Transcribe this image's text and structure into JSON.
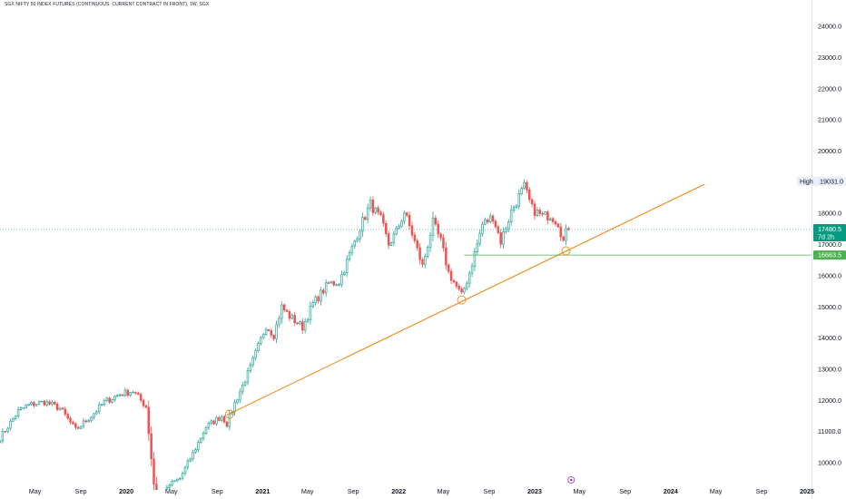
{
  "title": "SGX NIFTY 50 INDEX FUTURES (CONTINUOUS: CURRENT CONTRACT IN FRONT), 1W, SGX",
  "colors": {
    "up": "#26a69a",
    "down": "#ef5350",
    "trendline": "#f57c00",
    "support": "#4caf50",
    "current_price_bg": "#089981",
    "support_label_bg": "#4caf50",
    "high_label_bg": "#e9eefc",
    "dotted_price_line": "#26a69a",
    "event_marker": "#9c27b0"
  },
  "chart_data": {
    "type": "candlestick",
    "title": "SGX NIFTY 50 INDEX FUTURES (CONTINUOUS: CURRENT CONTRACT IN FRONT), 1W, SGX",
    "ylim": [
      9600,
      24700
    ],
    "xlim": [
      "2019-01-27",
      "2025-01-13"
    ],
    "y_ticks": [
      10000,
      11000,
      12000,
      13000,
      14000,
      15000,
      16000,
      17000,
      18000,
      19000,
      20000,
      21000,
      22000,
      23000,
      24000
    ],
    "y_tick_labels": [
      "10000.0",
      "11000.0",
      "12000.0",
      "13000.0",
      "14000.0",
      "15000.0",
      "16000.0",
      "17000.0",
      "18000.0",
      "19000.0",
      "20000.0",
      "21000.0",
      "22000.0",
      "23000.0",
      "24000.0"
    ],
    "x_ticks": [
      {
        "label": "May",
        "date": "2019-05-01",
        "bold": false
      },
      {
        "label": "Sep",
        "date": "2019-09-01",
        "bold": false
      },
      {
        "label": "2020",
        "date": "2020-01-01",
        "bold": true
      },
      {
        "label": "May",
        "date": "2020-05-01",
        "bold": false
      },
      {
        "label": "Sep",
        "date": "2020-09-01",
        "bold": false
      },
      {
        "label": "2021",
        "date": "2021-01-01",
        "bold": true
      },
      {
        "label": "May",
        "date": "2021-05-01",
        "bold": false
      },
      {
        "label": "Sep",
        "date": "2021-09-01",
        "bold": false
      },
      {
        "label": "2022",
        "date": "2022-01-01",
        "bold": true
      },
      {
        "label": "May",
        "date": "2022-05-01",
        "bold": false
      },
      {
        "label": "Sep",
        "date": "2022-09-01",
        "bold": false
      },
      {
        "label": "2023",
        "date": "2023-01-01",
        "bold": true
      },
      {
        "label": "May",
        "date": "2023-05-01",
        "bold": false
      },
      {
        "label": "Sep",
        "date": "2023-09-01",
        "bold": false
      },
      {
        "label": "2024",
        "date": "2024-01-01",
        "bold": true
      },
      {
        "label": "May",
        "date": "2024-05-01",
        "bold": false
      },
      {
        "label": "Sep",
        "date": "2024-09-01",
        "bold": false
      },
      {
        "label": "2025",
        "date": "2025-01-01",
        "bold": true
      }
    ],
    "key_points": [
      {
        "date": "2019-01-27",
        "price": 10800
      },
      {
        "date": "2019-03-17",
        "price": 11650
      },
      {
        "date": "2019-04-14",
        "price": 11850
      },
      {
        "date": "2019-05-26",
        "price": 11950
      },
      {
        "date": "2019-07-07",
        "price": 11750
      },
      {
        "date": "2019-08-18",
        "price": 11050
      },
      {
        "date": "2019-09-29",
        "price": 11500
      },
      {
        "date": "2019-11-03",
        "price": 11950
      },
      {
        "date": "2019-12-15",
        "price": 12200
      },
      {
        "date": "2020-01-19",
        "price": 12300
      },
      {
        "date": "2020-02-23",
        "price": 11800
      },
      {
        "date": "2020-03-22",
        "price": 8500
      },
      {
        "date": "2020-04-26",
        "price": 9300
      },
      {
        "date": "2020-05-24",
        "price": 9500
      },
      {
        "date": "2020-06-28",
        "price": 10300
      },
      {
        "date": "2020-08-02",
        "price": 11150
      },
      {
        "date": "2020-09-13",
        "price": 11500
      },
      {
        "date": "2020-09-27",
        "price": 11250
      },
      {
        "date": "2020-10-18",
        "price": 11900
      },
      {
        "date": "2020-11-29",
        "price": 13050
      },
      {
        "date": "2021-01-10",
        "price": 14400
      },
      {
        "date": "2021-01-31",
        "price": 14100
      },
      {
        "date": "2021-02-21",
        "price": 15000
      },
      {
        "date": "2021-03-14",
        "price": 14700
      },
      {
        "date": "2021-04-18",
        "price": 14350
      },
      {
        "date": "2021-05-16",
        "price": 15100
      },
      {
        "date": "2021-06-27",
        "price": 15750
      },
      {
        "date": "2021-07-25",
        "price": 15800
      },
      {
        "date": "2021-08-15",
        "price": 16450
      },
      {
        "date": "2021-09-19",
        "price": 17550
      },
      {
        "date": "2021-10-17",
        "price": 18300
      },
      {
        "date": "2021-11-14",
        "price": 17800
      },
      {
        "date": "2021-12-05",
        "price": 17000
      },
      {
        "date": "2021-12-26",
        "price": 17400
      },
      {
        "date": "2022-01-16",
        "price": 18050
      },
      {
        "date": "2022-02-06",
        "price": 17350
      },
      {
        "date": "2022-03-06",
        "price": 16300
      },
      {
        "date": "2022-04-03",
        "price": 17700
      },
      {
        "date": "2022-04-24",
        "price": 17100
      },
      {
        "date": "2022-05-15",
        "price": 16100
      },
      {
        "date": "2022-06-19",
        "price": 15350
      },
      {
        "date": "2022-07-10",
        "price": 16100
      },
      {
        "date": "2022-08-14",
        "price": 17650
      },
      {
        "date": "2022-09-11",
        "price": 17900
      },
      {
        "date": "2022-10-02",
        "price": 17100
      },
      {
        "date": "2022-10-30",
        "price": 18050
      },
      {
        "date": "2022-11-27",
        "price": 18700
      },
      {
        "date": "2022-12-04",
        "price": 18850
      },
      {
        "date": "2022-12-25",
        "price": 18150
      },
      {
        "date": "2023-01-22",
        "price": 17900
      },
      {
        "date": "2023-02-12",
        "price": 17950
      },
      {
        "date": "2023-03-05",
        "price": 17700
      },
      {
        "date": "2023-03-19",
        "price": 17100
      },
      {
        "date": "2023-03-26",
        "price": 17380
      },
      {
        "date": "2023-04-02",
        "price": 17480
      }
    ],
    "annotations": {
      "trendline": {
        "start": {
          "date": "2020-09-27",
          "price": 11530
        },
        "end": {
          "date": "2024-03-31",
          "price": 18930
        }
      },
      "support_level": {
        "price": 16663.5,
        "label": "16663.5",
        "from_date": "2022-06-26"
      },
      "current_price": {
        "price": 17480.5,
        "label": "17480.5",
        "countdown": "7d 2h"
      },
      "high": {
        "price": 19031.0,
        "label_text": "High",
        "value_text": "19031.0"
      },
      "circle_markers": [
        {
          "date": "2020-10-04",
          "price": 11560
        },
        {
          "date": "2022-06-19",
          "price": 15220
        },
        {
          "date": "2023-03-26",
          "price": 16800
        }
      ],
      "event_marker_date": "2023-04-09"
    }
  }
}
